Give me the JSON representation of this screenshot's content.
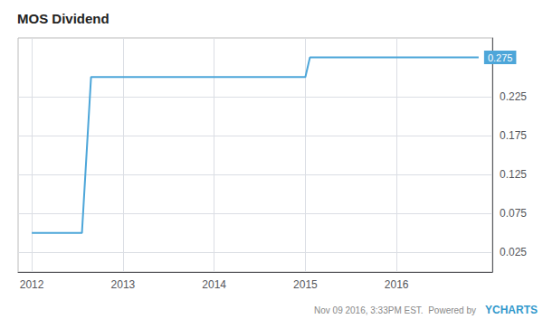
{
  "chart_data": {
    "type": "line",
    "title": "MOS Dividend",
    "x": [
      2012.0,
      2012.05,
      2012.55,
      2012.65,
      2013.0,
      2014.0,
      2014.95,
      2015.0,
      2015.05,
      2015.4,
      2015.5,
      2016.0,
      2016.5,
      2016.9
    ],
    "values": [
      0.05,
      0.05,
      0.05,
      0.25,
      0.25,
      0.25,
      0.25,
      0.25,
      0.275,
      0.275,
      0.275,
      0.275,
      0.275,
      0.275
    ],
    "color": "#4da6d9",
    "xlim": [
      2011.85,
      2017.05
    ],
    "xticks": [
      2012,
      2013,
      2014,
      2015,
      2016
    ],
    "ylim": [
      0.0,
      0.3
    ],
    "yticks": [
      0.025,
      0.075,
      0.125,
      0.175,
      0.225
    ],
    "grid": true,
    "annotations": [
      {
        "text": "0.275",
        "x": 2016.9,
        "y": 0.275
      }
    ],
    "footer": [
      "Nov 09 2016, 3:33PM EST.  Powered by",
      "YCHARTS"
    ]
  }
}
